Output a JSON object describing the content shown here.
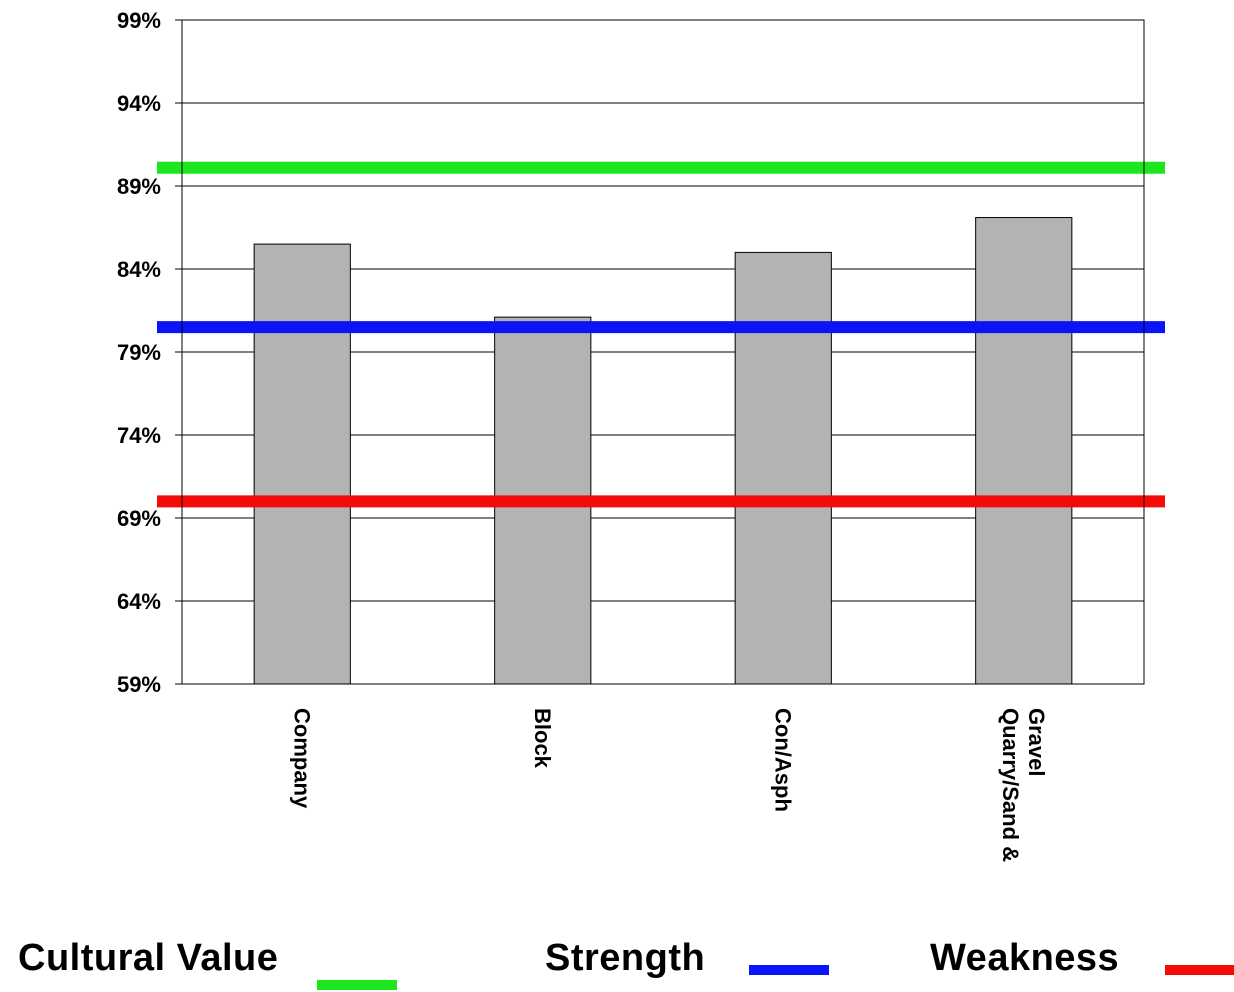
{
  "chart_data": {
    "type": "bar",
    "title": "",
    "xlabel": "",
    "ylabel": "",
    "categories": [
      "Company",
      "Block",
      "Con/Asph",
      "Quarry/Sand & Gravel"
    ],
    "category_label_lines": [
      [
        "Company"
      ],
      [
        "Block"
      ],
      [
        "Con/Asph"
      ],
      [
        "Quarry/Sand &",
        "Gravel"
      ]
    ],
    "values": [
      85.5,
      81.1,
      85.0,
      87.1
    ],
    "ylim": [
      59,
      99
    ],
    "yticks": [
      59,
      64,
      69,
      74,
      79,
      84,
      89,
      94,
      99
    ],
    "ytick_labels": [
      "59%",
      "64%",
      "69%",
      "74%",
      "79%",
      "84%",
      "89%",
      "94%",
      "99%"
    ],
    "grid": true,
    "bar_color": "#b3b3b3",
    "reference_lines": [
      {
        "name": "Cultural Value",
        "value": 90.1,
        "color": "#1ee61e"
      },
      {
        "name": "Strength",
        "value": 80.5,
        "color": "#0a14f5"
      },
      {
        "name": "Weakness",
        "value": 70.0,
        "color": "#f50a0a"
      }
    ],
    "legend_placement": "bottom"
  },
  "legend": {
    "items": [
      {
        "label": "Cultural Value",
        "color": "#1ee61e"
      },
      {
        "label": "Strength",
        "color": "#0a14f5"
      },
      {
        "label": "Weakness",
        "color": "#f50a0a"
      }
    ]
  }
}
